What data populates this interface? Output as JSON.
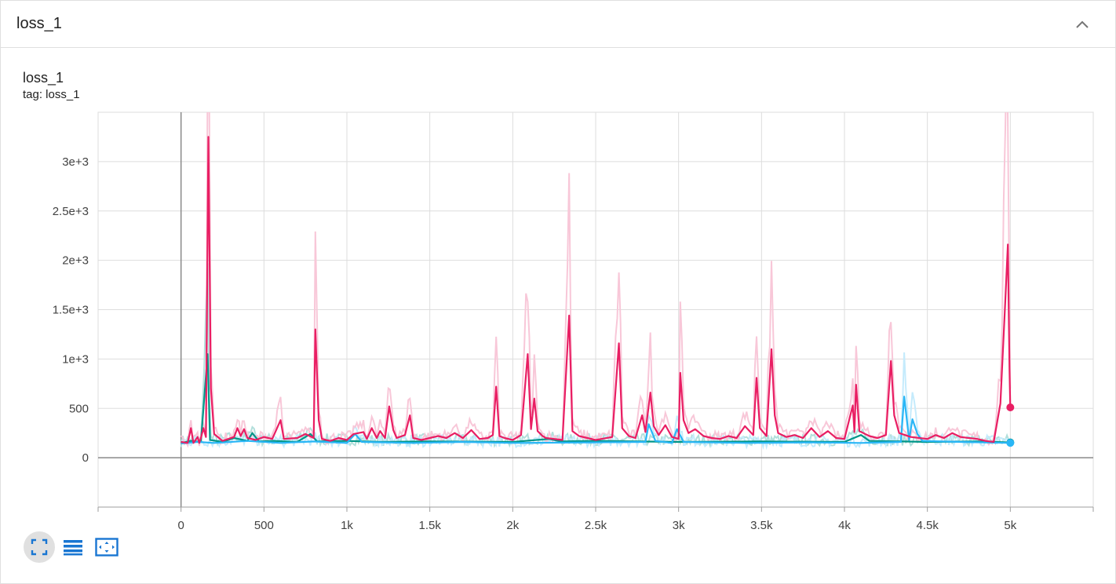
{
  "header": {
    "title": "loss_1"
  },
  "card": {
    "title": "loss_1",
    "tag": "tag: loss_1"
  },
  "toolbar": {
    "buttons": [
      {
        "name": "fit-domain-icon",
        "active": true
      },
      {
        "name": "log-scale-icon",
        "active": false
      },
      {
        "name": "toggle-expand-icon",
        "active": false
      }
    ]
  },
  "colors": {
    "run_pink": "#e91e63",
    "run_pink_raw": "#f8c7d8",
    "run_teal": "#009688",
    "run_teal_raw": "#b2dfdb",
    "run_blue": "#29b6f6",
    "run_blue_raw": "#c5ebfc",
    "axis": "#9e9e9e",
    "grid": "#dddddd"
  },
  "chart_data": {
    "type": "line",
    "title": "loss_1",
    "xlabel": "",
    "ylabel": "",
    "xlim": [
      -500,
      5500
    ],
    "ylim": [
      -500,
      3500
    ],
    "grid": true,
    "legend": "none",
    "x_ticks": [
      {
        "value": 0,
        "label": "0"
      },
      {
        "value": 500,
        "label": "500"
      },
      {
        "value": 1000,
        "label": "1k"
      },
      {
        "value": 1500,
        "label": "1.5k"
      },
      {
        "value": 2000,
        "label": "2k"
      },
      {
        "value": 2500,
        "label": "2.5k"
      },
      {
        "value": 3000,
        "label": "3k"
      },
      {
        "value": 3500,
        "label": "3.5k"
      },
      {
        "value": 4000,
        "label": "4k"
      },
      {
        "value": 4500,
        "label": "4.5k"
      },
      {
        "value": 5000,
        "label": "5k"
      }
    ],
    "y_ticks": [
      {
        "value": 0,
        "label": "0"
      },
      {
        "value": 500,
        "label": "500"
      },
      {
        "value": 1000,
        "label": "1e+3"
      },
      {
        "value": 1500,
        "label": "1.5e+3"
      },
      {
        "value": 2000,
        "label": "2e+3"
      },
      {
        "value": 2500,
        "label": "2.5e+3"
      },
      {
        "value": 3000,
        "label": "3e+3"
      }
    ],
    "series": [
      {
        "color_key": "run_teal",
        "raw_color_key": "run_teal_raw",
        "baseline": 155,
        "points": [
          [
            0,
            150
          ],
          [
            60,
            170
          ],
          [
            120,
            160
          ],
          [
            160,
            1050
          ],
          [
            175,
            180
          ],
          [
            250,
            160
          ],
          [
            320,
            200
          ],
          [
            400,
            170
          ],
          [
            430,
            250
          ],
          [
            470,
            165
          ],
          [
            560,
            170
          ],
          [
            700,
            160
          ],
          [
            780,
            240
          ],
          [
            820,
            165
          ],
          [
            1000,
            170
          ],
          [
            1200,
            160
          ],
          [
            1500,
            165
          ],
          [
            2000,
            160
          ],
          [
            2220,
            190
          ],
          [
            2290,
            165
          ],
          [
            2500,
            170
          ],
          [
            3000,
            160
          ],
          [
            3500,
            165
          ],
          [
            4000,
            160
          ],
          [
            4100,
            230
          ],
          [
            4150,
            170
          ],
          [
            4350,
            165
          ],
          [
            4500,
            160
          ],
          [
            4800,
            165
          ],
          [
            5000,
            155
          ]
        ]
      },
      {
        "color_key": "run_blue",
        "raw_color_key": "run_blue_raw",
        "baseline": 150,
        "points": [
          [
            0,
            145
          ],
          [
            100,
            160
          ],
          [
            200,
            150
          ],
          [
            400,
            170
          ],
          [
            600,
            150
          ],
          [
            800,
            165
          ],
          [
            1000,
            150
          ],
          [
            1050,
            240
          ],
          [
            1090,
            160
          ],
          [
            1400,
            150
          ],
          [
            1700,
            160
          ],
          [
            2000,
            150
          ],
          [
            2500,
            155
          ],
          [
            2800,
            160
          ],
          [
            2820,
            340
          ],
          [
            2860,
            170
          ],
          [
            2960,
            150
          ],
          [
            2990,
            290
          ],
          [
            3030,
            160
          ],
          [
            3400,
            150
          ],
          [
            3800,
            155
          ],
          [
            4100,
            150
          ],
          [
            4340,
            160
          ],
          [
            4360,
            620
          ],
          [
            4390,
            180
          ],
          [
            4410,
            390
          ],
          [
            4440,
            240
          ],
          [
            4470,
            170
          ],
          [
            4700,
            160
          ],
          [
            5000,
            150
          ]
        ]
      },
      {
        "color_key": "run_pink",
        "raw_color_key": "run_pink_raw",
        "baseline": 165,
        "points": [
          [
            0,
            160
          ],
          [
            40,
            150
          ],
          [
            60,
            300
          ],
          [
            75,
            150
          ],
          [
            100,
            210
          ],
          [
            110,
            150
          ],
          [
            120,
            200
          ],
          [
            135,
            300
          ],
          [
            150,
            210
          ],
          [
            165,
            3250
          ],
          [
            180,
            700
          ],
          [
            200,
            240
          ],
          [
            250,
            170
          ],
          [
            320,
            210
          ],
          [
            340,
            300
          ],
          [
            360,
            220
          ],
          [
            380,
            290
          ],
          [
            400,
            200
          ],
          [
            450,
            180
          ],
          [
            500,
            210
          ],
          [
            550,
            190
          ],
          [
            600,
            380
          ],
          [
            620,
            190
          ],
          [
            700,
            200
          ],
          [
            750,
            240
          ],
          [
            800,
            200
          ],
          [
            810,
            1300
          ],
          [
            830,
            380
          ],
          [
            850,
            190
          ],
          [
            900,
            170
          ],
          [
            950,
            200
          ],
          [
            1000,
            180
          ],
          [
            1040,
            240
          ],
          [
            1100,
            260
          ],
          [
            1120,
            190
          ],
          [
            1150,
            300
          ],
          [
            1180,
            200
          ],
          [
            1200,
            270
          ],
          [
            1230,
            200
          ],
          [
            1255,
            520
          ],
          [
            1280,
            280
          ],
          [
            1300,
            200
          ],
          [
            1350,
            230
          ],
          [
            1380,
            430
          ],
          [
            1400,
            200
          ],
          [
            1450,
            180
          ],
          [
            1500,
            200
          ],
          [
            1550,
            220
          ],
          [
            1600,
            200
          ],
          [
            1650,
            250
          ],
          [
            1700,
            200
          ],
          [
            1750,
            280
          ],
          [
            1800,
            190
          ],
          [
            1850,
            200
          ],
          [
            1880,
            230
          ],
          [
            1900,
            720
          ],
          [
            1920,
            220
          ],
          [
            1950,
            200
          ],
          [
            2000,
            180
          ],
          [
            2050,
            230
          ],
          [
            2090,
            1050
          ],
          [
            2110,
            290
          ],
          [
            2130,
            600
          ],
          [
            2150,
            270
          ],
          [
            2180,
            220
          ],
          [
            2200,
            200
          ],
          [
            2300,
            180
          ],
          [
            2340,
            1440
          ],
          [
            2360,
            270
          ],
          [
            2400,
            220
          ],
          [
            2450,
            200
          ],
          [
            2500,
            180
          ],
          [
            2600,
            210
          ],
          [
            2640,
            1160
          ],
          [
            2660,
            300
          ],
          [
            2700,
            220
          ],
          [
            2740,
            200
          ],
          [
            2780,
            430
          ],
          [
            2800,
            260
          ],
          [
            2830,
            660
          ],
          [
            2850,
            320
          ],
          [
            2880,
            230
          ],
          [
            2920,
            330
          ],
          [
            2960,
            210
          ],
          [
            3000,
            190
          ],
          [
            3010,
            860
          ],
          [
            3030,
            380
          ],
          [
            3060,
            250
          ],
          [
            3100,
            290
          ],
          [
            3150,
            220
          ],
          [
            3200,
            200
          ],
          [
            3250,
            190
          ],
          [
            3300,
            220
          ],
          [
            3350,
            200
          ],
          [
            3400,
            320
          ],
          [
            3450,
            230
          ],
          [
            3470,
            810
          ],
          [
            3490,
            300
          ],
          [
            3530,
            220
          ],
          [
            3560,
            1100
          ],
          [
            3580,
            430
          ],
          [
            3600,
            250
          ],
          [
            3650,
            210
          ],
          [
            3700,
            230
          ],
          [
            3750,
            200
          ],
          [
            3800,
            300
          ],
          [
            3850,
            210
          ],
          [
            3900,
            270
          ],
          [
            3950,
            200
          ],
          [
            4000,
            190
          ],
          [
            4050,
            530
          ],
          [
            4060,
            260
          ],
          [
            4070,
            740
          ],
          [
            4090,
            270
          ],
          [
            4150,
            220
          ],
          [
            4200,
            200
          ],
          [
            4250,
            230
          ],
          [
            4280,
            980
          ],
          [
            4300,
            430
          ],
          [
            4330,
            250
          ],
          [
            4400,
            210
          ],
          [
            4500,
            190
          ],
          [
            4550,
            230
          ],
          [
            4600,
            200
          ],
          [
            4650,
            250
          ],
          [
            4700,
            210
          ],
          [
            4750,
            200
          ],
          [
            4800,
            190
          ],
          [
            4850,
            170
          ],
          [
            4900,
            160
          ],
          [
            4940,
            550
          ],
          [
            4970,
            1600
          ],
          [
            4985,
            2160
          ],
          [
            4995,
            900
          ],
          [
            5000,
            510
          ]
        ]
      }
    ]
  }
}
